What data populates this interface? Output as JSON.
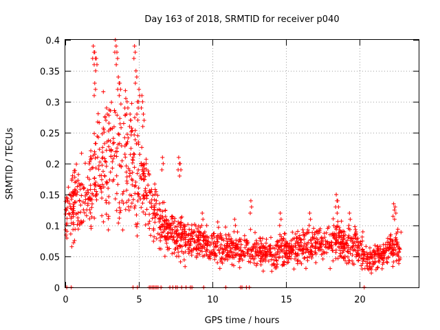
{
  "chart_data": {
    "type": "scatter",
    "title": "Day 163 of 2018, SRMTID for receiver p040",
    "xlabel": "GPS time / hours",
    "ylabel": "SRMTID / TECUs",
    "xlim": [
      0,
      24
    ],
    "ylim": [
      0,
      0.4
    ],
    "x_ticks": [
      0,
      5,
      10,
      15,
      20
    ],
    "y_ticks": [
      0,
      0.05,
      0.1,
      0.15,
      0.2,
      0.25,
      0.3,
      0.35,
      0.4
    ],
    "x_tick_labels": [
      "0",
      "5",
      "10",
      "15",
      "20"
    ],
    "y_tick_labels": [
      "0",
      "0.05",
      "0.1",
      "0.15",
      "0.2",
      "0.25",
      "0.3",
      "0.35",
      "0.4"
    ],
    "grid": true,
    "marker": "+",
    "marker_color": "#ff0000",
    "series": [
      {
        "name": "SRMTID p040",
        "profile_x": [
          0,
          0.5,
          1,
          1.5,
          2,
          2.5,
          3,
          3.5,
          4,
          4.5,
          5,
          5.5,
          6,
          6.5,
          7,
          7.5,
          8,
          8.5,
          9,
          10,
          11,
          12,
          13,
          14,
          15,
          16,
          17,
          18,
          18.5,
          19,
          20,
          20.5,
          21,
          22,
          22.8
        ],
        "profile_y": [
          0.11,
          0.13,
          0.14,
          0.15,
          0.18,
          0.2,
          0.21,
          0.22,
          0.21,
          0.19,
          0.18,
          0.16,
          0.12,
          0.1,
          0.09,
          0.085,
          0.08,
          0.08,
          0.075,
          0.07,
          0.065,
          0.06,
          0.06,
          0.055,
          0.06,
          0.065,
          0.07,
          0.07,
          0.075,
          0.07,
          0.065,
          0.045,
          0.05,
          0.06,
          0.07
        ],
        "spread_y": [
          0.03,
          0.05,
          0.06,
          0.07,
          0.08,
          0.09,
          0.1,
          0.1,
          0.09,
          0.09,
          0.08,
          0.06,
          0.04,
          0.035,
          0.03,
          0.03,
          0.03,
          0.028,
          0.025,
          0.025,
          0.025,
          0.025,
          0.022,
          0.022,
          0.025,
          0.025,
          0.025,
          0.028,
          0.03,
          0.028,
          0.025,
          0.02,
          0.02,
          0.022,
          0.025
        ],
        "peaks": [
          [
            1.9,
            0.39
          ],
          [
            2.0,
            0.38
          ],
          [
            2.1,
            0.37
          ],
          [
            2.0,
            0.33
          ],
          [
            3.4,
            0.4
          ],
          [
            3.5,
            0.38
          ],
          [
            3.6,
            0.34
          ],
          [
            3.7,
            0.33
          ],
          [
            4.7,
            0.39
          ],
          [
            4.8,
            0.35
          ],
          [
            5.0,
            0.32
          ],
          [
            5.2,
            0.31
          ],
          [
            5.3,
            0.28
          ],
          [
            4.9,
            0.3
          ],
          [
            2.8,
            0.29
          ],
          [
            4.2,
            0.3
          ],
          [
            4.4,
            0.28
          ],
          [
            7.7,
            0.21
          ],
          [
            7.8,
            0.2
          ],
          [
            6.6,
            0.21
          ],
          [
            12.6,
            0.14
          ],
          [
            14.6,
            0.12
          ],
          [
            16.6,
            0.12
          ],
          [
            18.4,
            0.15
          ],
          [
            18.5,
            0.14
          ],
          [
            19.3,
            0.12
          ],
          [
            22.3,
            0.135
          ],
          [
            22.4,
            0.13
          ],
          [
            9.3,
            0.12
          ],
          [
            11.5,
            0.11
          ]
        ],
        "zero_x": [
          0.1,
          0.4,
          4.6,
          4.9,
          5.7,
          5.8,
          5.9,
          6.0,
          6.1,
          6.2,
          6.3,
          6.5,
          7.1,
          7.3,
          7.5,
          7.6,
          7.9,
          8.2,
          8.5,
          8.6,
          9.4,
          10.9,
          11.9,
          12.0,
          12.3,
          12.5,
          20.3
        ]
      }
    ]
  }
}
